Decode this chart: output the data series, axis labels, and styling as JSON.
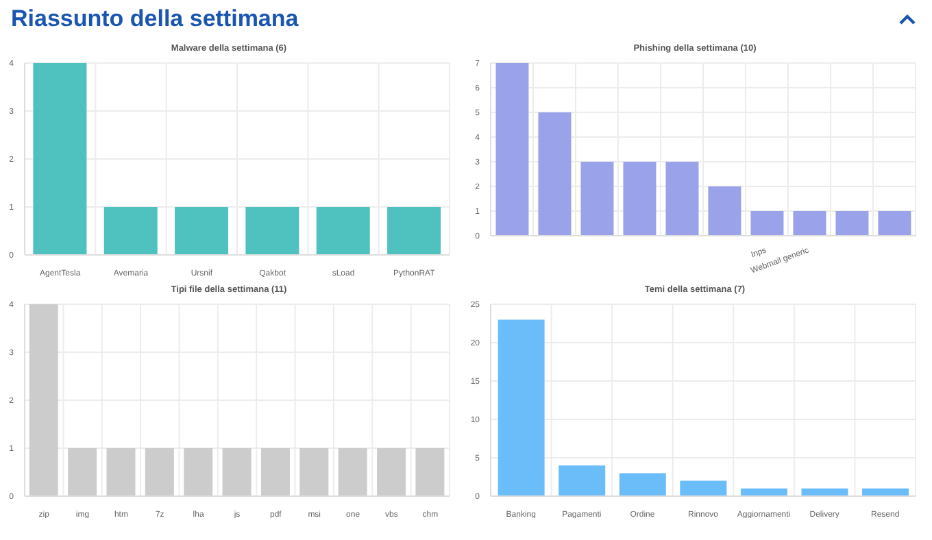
{
  "chart_data": [
    {
      "type": "other",
      "title": "Riassunto della settimana"
    },
    {
      "type": "bar",
      "title": "Malware della settimana (6)",
      "categories": [
        "AgentTesla",
        "Avemaria",
        "Ursnif",
        "Qakbot",
        "sLoad",
        "PythonRAT"
      ],
      "values": [
        4,
        1,
        1,
        1,
        1,
        1
      ],
      "color": "#4fc1bf",
      "ylim": [
        0,
        4
      ],
      "yticks": [
        0,
        1,
        2,
        3,
        4
      ],
      "grid": true
    },
    {
      "type": "bar",
      "title": "Phishing della settimana (10)",
      "categories": [
        null,
        null,
        null,
        null,
        null,
        null,
        "Inps",
        "Webmail generic",
        null,
        null
      ],
      "values": [
        7,
        5,
        3,
        3,
        3,
        2,
        1,
        1,
        1,
        1
      ],
      "color": "#9aa2ea",
      "ylim": [
        0,
        7
      ],
      "yticks": [
        0,
        1,
        2,
        3,
        4,
        5,
        6,
        7
      ],
      "grid": true
    },
    {
      "type": "bar",
      "title": "Tipi file della settimana (11)",
      "categories": [
        "zip",
        "img",
        "htm",
        "7z",
        "lha",
        "js",
        "pdf",
        "msi",
        "one",
        "vbs",
        "chm"
      ],
      "values": [
        4,
        1,
        1,
        1,
        1,
        1,
        1,
        1,
        1,
        1,
        1
      ],
      "color": "#cccccc",
      "ylim": [
        0,
        4
      ],
      "yticks": [
        0,
        1,
        2,
        3,
        4
      ],
      "grid": true
    },
    {
      "type": "bar",
      "title": "Temi della settimana (7)",
      "categories": [
        "Banking",
        "Pagamenti",
        "Ordine",
        "Rinnovo",
        "Aggiornamenti",
        "Delivery",
        "Resend"
      ],
      "values": [
        23,
        4,
        3,
        2,
        1,
        1,
        1
      ],
      "color": "#6bbdfa",
      "ylim": [
        0,
        25
      ],
      "yticks": [
        0,
        5,
        10,
        15,
        20,
        25
      ],
      "grid": true
    }
  ]
}
